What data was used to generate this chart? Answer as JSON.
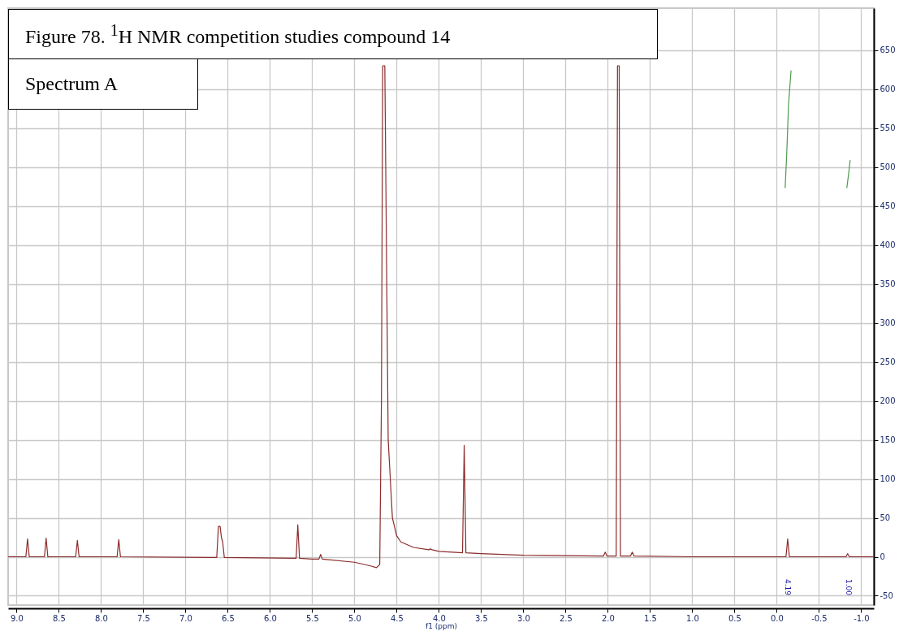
{
  "chart_data": {
    "type": "line",
    "title": "Figure 78. $^{1}$H NMR competition studies compound 14",
    "subtitle": "Spectrum A",
    "xlabel": "f1 (ppm)",
    "xlim": [
      9.1,
      -1.15
    ],
    "ylim": [
      -62,
      704
    ],
    "xticks": [
      {
        "value": 9,
        "label": "9.0"
      },
      8.5,
      {
        "value": 8,
        "label": "8.0"
      },
      7.5,
      {
        "value": 7,
        "label": "7.0"
      },
      6.5,
      {
        "value": 6,
        "label": "6.0"
      },
      5.5,
      {
        "value": 5,
        "label": "5.0"
      },
      4.5,
      {
        "value": 4,
        "label": "4.0"
      },
      3.5,
      {
        "value": 3,
        "label": "3.0"
      },
      2.5,
      {
        "value": 2,
        "label": "2.0"
      },
      1.5,
      {
        "value": 1,
        "label": "1.0"
      },
      0.5,
      {
        "value": 0,
        "label": "0.0"
      },
      -0.5,
      {
        "value": -1,
        "label": "-1.0"
      }
    ],
    "yticks": [
      -50,
      0,
      50,
      100,
      150,
      200,
      250,
      300,
      350,
      400,
      450,
      500,
      550,
      600,
      650
    ],
    "grid": true,
    "series": [
      {
        "color": "#8b2b2b",
        "x": [
          9.1,
          8.89,
          8.87,
          8.85,
          8.67,
          8.65,
          8.63,
          8.3,
          8.28,
          8.26,
          7.81,
          7.79,
          7.77,
          6.63,
          6.61,
          6.59,
          6.575,
          6.56,
          6.54,
          5.69,
          5.67,
          5.65,
          5.5,
          5.42,
          5.4,
          5.38,
          5.0,
          4.8,
          4.74,
          4.7,
          4.68,
          4.665,
          4.64,
          4.6,
          4.55,
          4.5,
          4.45,
          4.3,
          4.12,
          4.1,
          4.08,
          4.0,
          3.72,
          3.7,
          3.68,
          3.5,
          3.0,
          2.05,
          2.03,
          2.01,
          1.9,
          1.885,
          1.865,
          1.85,
          1.73,
          1.71,
          1.69,
          1.0,
          0.0,
          -0.11,
          -0.13,
          -0.15,
          -0.82,
          -0.84,
          -0.86,
          -1.15
        ],
        "values": [
          0,
          0,
          23,
          0,
          0,
          24,
          0,
          0,
          21,
          0,
          0,
          22,
          0,
          -1,
          39,
          39,
          25,
          19,
          -1,
          -2,
          41,
          -2,
          -3,
          -3,
          3,
          -3,
          -7,
          -12,
          -14,
          -10,
          200,
          630,
          630,
          150,
          50,
          27,
          19,
          12,
          9,
          10,
          9,
          7,
          5,
          143,
          5,
          4,
          2,
          1,
          6,
          1,
          1,
          630,
          630,
          1,
          1,
          6,
          1,
          0,
          0,
          0,
          23,
          0,
          0,
          4,
          0,
          0
        ]
      },
      {
        "color": "#4f9a4f",
        "x": [
          -0.1,
          -0.12,
          -0.14,
          -0.17
        ],
        "values": [
          473,
          520,
          580,
          624
        ]
      },
      {
        "color": "#4f9a4f",
        "x": [
          -0.83,
          -0.85,
          -0.87
        ],
        "values": [
          473,
          490,
          509
        ]
      }
    ],
    "annotations": [
      "4.19",
      "1.00"
    ]
  }
}
